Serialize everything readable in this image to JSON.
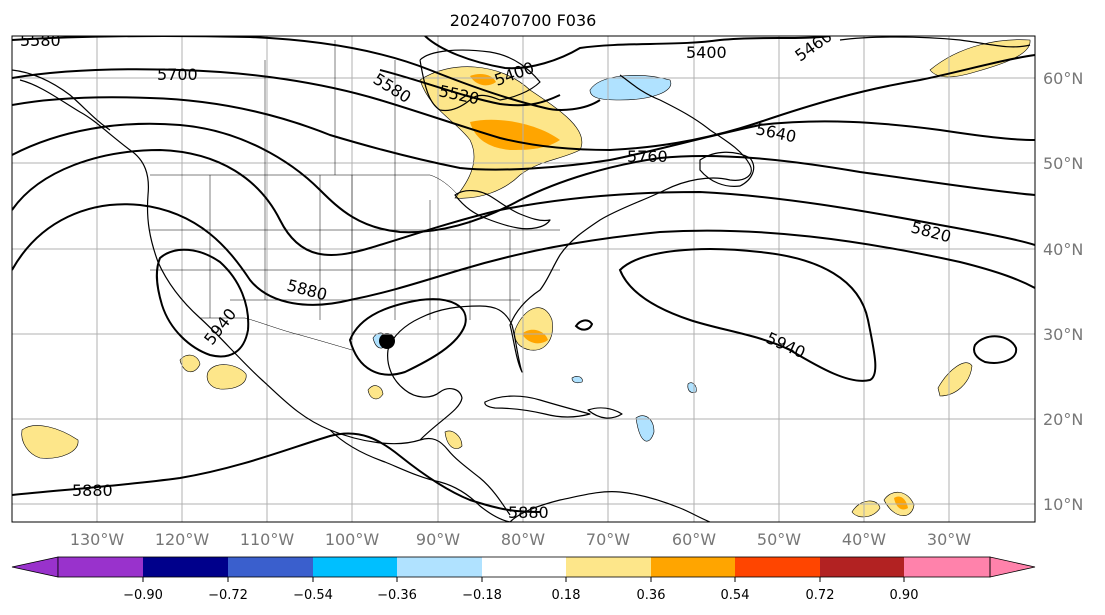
{
  "title": "2024070700 F036",
  "map": {
    "lat_labels": [
      "60°N",
      "50°N",
      "40°N",
      "30°N",
      "20°N",
      "10°N"
    ],
    "lon_labels": [
      "130°W",
      "120°W",
      "110°W",
      "100°W",
      "90°W",
      "80°W",
      "70°W",
      "60°W",
      "50°W",
      "40°W",
      "30°W"
    ],
    "contour_labels": [
      "5580",
      "5700",
      "5580",
      "5520",
      "5400",
      "5400",
      "5460",
      "5640",
      "5760",
      "5820",
      "5880",
      "5940",
      "5940",
      "5880",
      "5880"
    ],
    "colors": {
      "gridline": "#b0b0b0",
      "coast": "#000000",
      "contour": "#000000"
    }
  },
  "colorbar": {
    "ticks": [
      "−0.90",
      "−0.72",
      "−0.54",
      "−0.36",
      "−0.18",
      "0.18",
      "0.36",
      "0.54",
      "0.72",
      "0.90"
    ],
    "colors": [
      "#9932cc",
      "#00008b",
      "#3a5fcd",
      "#00bfff",
      "#b0e2ff",
      "#ffffff",
      "#fde68a",
      "#ffa500",
      "#ff4500",
      "#b22222",
      "#ff82ab"
    ]
  }
}
